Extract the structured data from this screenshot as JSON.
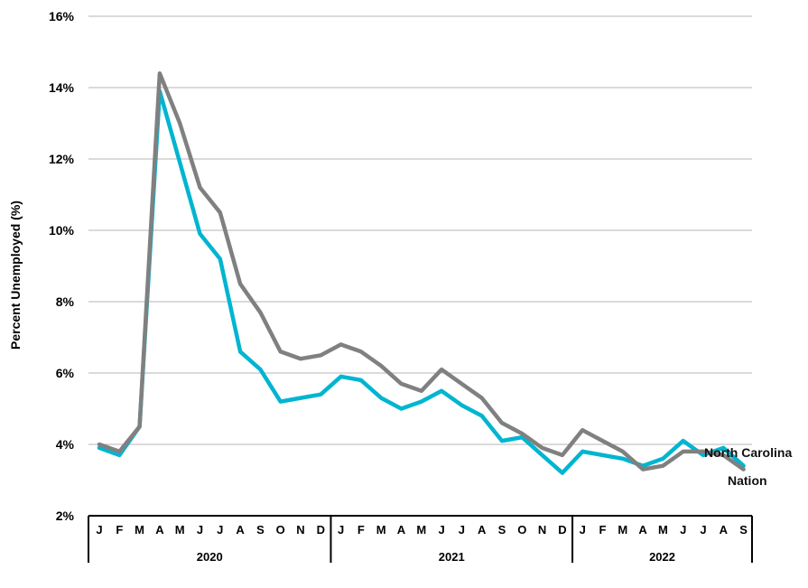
{
  "chart_data": {
    "type": "line",
    "title": "",
    "ylabel": "Percent Unemployed (%)",
    "xlabel": "",
    "ylim": [
      2,
      16
    ],
    "yticks": [
      2,
      4,
      6,
      8,
      10,
      12,
      14,
      16
    ],
    "ytick_labels": [
      "2%",
      "4%",
      "6%",
      "8%",
      "10%",
      "12%",
      "14%",
      "16%"
    ],
    "grid": true,
    "categories": [
      "J",
      "F",
      "M",
      "A",
      "M",
      "J",
      "J",
      "A",
      "S",
      "O",
      "N",
      "D",
      "J",
      "F",
      "M",
      "A",
      "M",
      "J",
      "J",
      "A",
      "S",
      "O",
      "N",
      "D",
      "J",
      "F",
      "M",
      "A",
      "M",
      "J",
      "J",
      "A",
      "S"
    ],
    "years": [
      {
        "label": "2020",
        "start": 0,
        "end": 11
      },
      {
        "label": "2021",
        "start": 12,
        "end": 23
      },
      {
        "label": "2022",
        "start": 24,
        "end": 32
      }
    ],
    "series": [
      {
        "name": "North Carolina",
        "color": "#00b5d1",
        "values": [
          3.9,
          3.7,
          4.5,
          13.9,
          11.9,
          9.9,
          9.2,
          6.6,
          6.1,
          5.2,
          5.3,
          5.4,
          5.9,
          5.8,
          5.3,
          5.0,
          5.2,
          5.5,
          5.1,
          4.8,
          4.1,
          4.2,
          3.7,
          3.2,
          3.8,
          3.7,
          3.6,
          3.4,
          3.6,
          4.1,
          3.7,
          3.9,
          3.4
        ]
      },
      {
        "name": "Nation",
        "color": "#808080",
        "values": [
          4.0,
          3.8,
          4.5,
          14.4,
          13.0,
          11.2,
          10.5,
          8.5,
          7.7,
          6.6,
          6.4,
          6.5,
          6.8,
          6.6,
          6.2,
          5.7,
          5.5,
          6.1,
          5.7,
          5.3,
          4.6,
          4.3,
          3.9,
          3.7,
          4.4,
          4.1,
          3.8,
          3.3,
          3.4,
          3.8,
          3.8,
          3.7,
          3.3
        ]
      }
    ]
  }
}
